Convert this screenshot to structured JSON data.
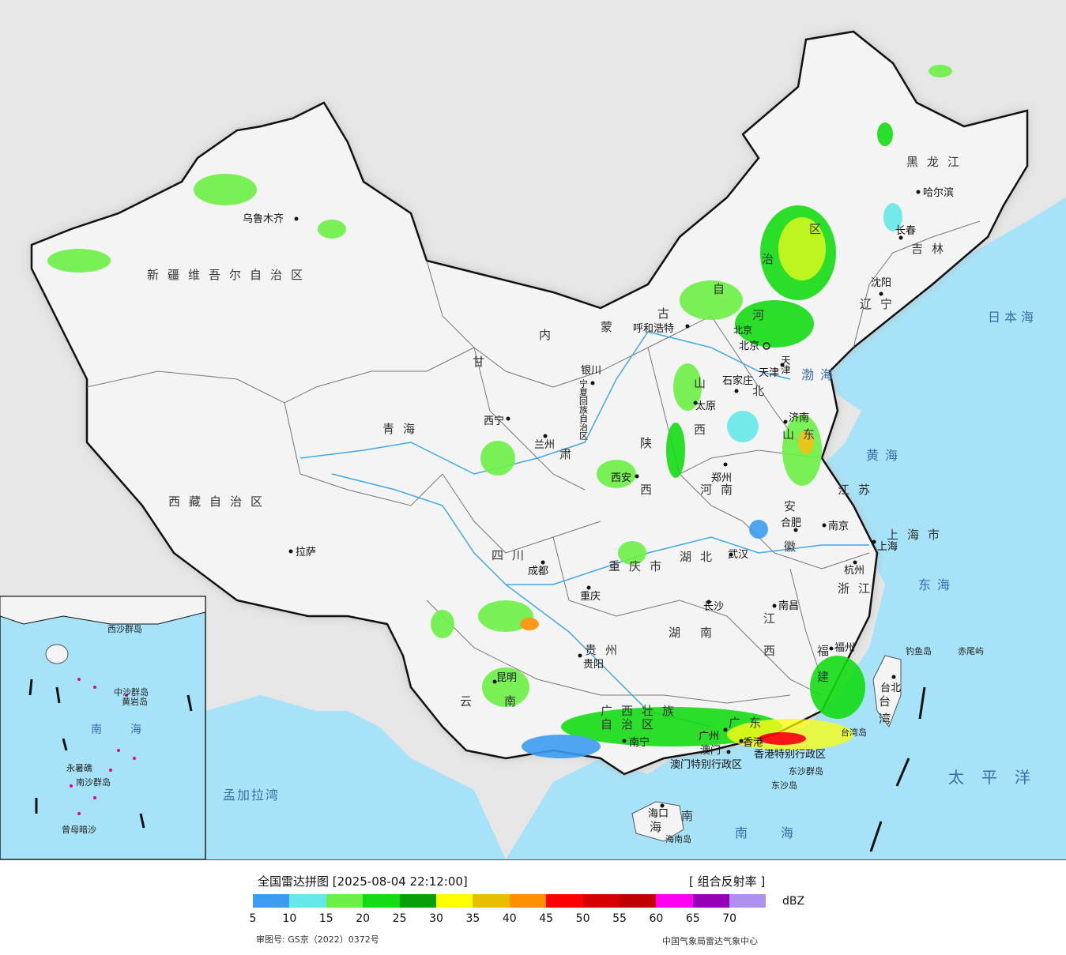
{
  "map": {
    "regions": {
      "xinjiang": "新疆维吾尔自治区",
      "xizang": "西藏自治区",
      "qinghai": "青海",
      "gansu_1": "甘",
      "gansu_2": "肃",
      "neimenggu_1": "内",
      "neimenggu_2": "蒙",
      "neimenggu_3": "古",
      "neimenggu_4": "自",
      "neimenggu_5": "治",
      "neimenggu_6": "区",
      "heilongjiang": "黑龙江",
      "jilin": "吉林",
      "liaoning": "辽宁",
      "hebei": "河北",
      "shanxi_a": "山",
      "shanxi_b": "西",
      "shaanxi_a": "陕",
      "shaanxi_b": "西",
      "shandong": "山东",
      "henan": "河南",
      "jiangsu": "江苏",
      "anhui_1": "安",
      "anhui_2": "徽",
      "shanghai": "上海市",
      "zhejiang": "浙江",
      "hubei": "湖北",
      "sichuan": "四川",
      "chongqing": "重庆市",
      "guizhou": "贵州",
      "hunan_1": "湖",
      "hunan_2": "南",
      "jiangxi_1": "江",
      "jiangxi_2": "西",
      "fujian_1": "福",
      "fujian_2": "建",
      "yunnan_1": "云",
      "yunnan_2": "南",
      "guangxi_1": "广西壮族",
      "guangxi_2": "自治区",
      "guangdong": "广东",
      "hainan_1": "海",
      "hainan_2": "南",
      "taiwan_1": "台",
      "taiwan_2": "湾",
      "ningxia": "宁夏回族自治区",
      "beijing": "北京",
      "tianjin": "天津",
      "hk": "香港特别行政区",
      "macau": "澳门特别行政区"
    },
    "cities": [
      "乌鲁木齐",
      "拉萨",
      "西宁",
      "兰州",
      "银川",
      "呼和浩特",
      "哈尔滨",
      "长春",
      "沈阳",
      "北京",
      "天津",
      "石家庄",
      "太原",
      "济南",
      "郑州",
      "西安",
      "南京",
      "合肥",
      "上海",
      "杭州",
      "武汉",
      "长沙",
      "南昌",
      "福州",
      "台北",
      "成都",
      "重庆",
      "贵阳",
      "昆明",
      "南宁",
      "广州",
      "香港",
      "澳门",
      "海口"
    ],
    "seas": {
      "bohai": "渤海",
      "huanghai": "黄海",
      "donghai": "东海",
      "nanhai": "南海",
      "taipingyang": "太平洋",
      "ribenhai": "日本海",
      "mengjiala": "孟加拉湾"
    },
    "islands": {
      "diaoyu": "钓鱼岛",
      "chiwei": "赤尾屿",
      "taiwan_island": "台湾岛",
      "hainan_island": "海南岛",
      "dongsha_islands": "东沙群岛",
      "dongsha_island": "东沙岛"
    },
    "inset": {
      "nanhai_1": "南",
      "nanhai_2": "海",
      "xisha": "西沙群岛",
      "zhongsha": "中沙群岛",
      "huangyan": "黄岩岛",
      "nansha": "南沙群岛",
      "zengmu": "曾母暗沙",
      "yongshu": "永暑礁"
    }
  },
  "legend": {
    "title": "全国雷达拼图 [2025-08-04 22:12:00]",
    "product": "[ 组合反射率 ]",
    "unit": "dBZ",
    "colors": [
      "#3d9cf0",
      "#66e8e8",
      "#6cf046",
      "#14dc14",
      "#08a008",
      "#ffff00",
      "#e6c000",
      "#ff9000",
      "#ff0000",
      "#d60000",
      "#c00000",
      "#ff00f0",
      "#9600b4",
      "#ad90f0"
    ],
    "ticks": [
      "5",
      "10",
      "15",
      "20",
      "25",
      "30",
      "35",
      "40",
      "45",
      "50",
      "55",
      "60",
      "65",
      "70"
    ],
    "approval": "审图号: GS京（2022）0372号",
    "org": "中国气象局雷达气象中心"
  }
}
